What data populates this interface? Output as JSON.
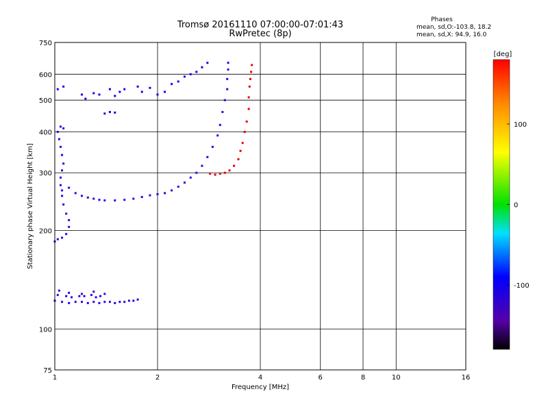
{
  "chart_data": {
    "type": "scatter",
    "title": "Tromsø 20161110 07:00:00-07:01:43",
    "subtitle": "RwPretec (8p)",
    "xlabel": "Frequency [MHz]",
    "ylabel": "Stationary phase Virtual Height [km]",
    "x_scale": "log",
    "y_scale": "log",
    "xlim": [
      1,
      16
    ],
    "ylim": [
      75,
      750
    ],
    "x_ticks": [
      1,
      2,
      4,
      6,
      8,
      10,
      16
    ],
    "y_ticks": [
      75,
      100,
      200,
      300,
      400,
      500,
      600,
      750
    ],
    "grid": true,
    "stats": {
      "title": "Phases",
      "line1": "mean, sd,O:-103.8, 18.2",
      "line2": "mean, sd,X:  94.9, 16.0"
    },
    "colorbar": {
      "label": "[deg]",
      "range": [
        -180,
        180
      ],
      "ticks": [
        100,
        0,
        -100
      ],
      "colormap": "rainbow"
    },
    "series": [
      {
        "name": "",
        "phase_deg": -110,
        "points": [
          [
            1.0,
            122
          ],
          [
            1.05,
            121
          ],
          [
            1.1,
            120
          ],
          [
            1.15,
            121
          ],
          [
            1.2,
            121
          ],
          [
            1.25,
            120
          ],
          [
            1.3,
            121
          ],
          [
            1.35,
            120
          ],
          [
            1.4,
            121
          ],
          [
            1.45,
            121
          ],
          [
            1.5,
            120
          ],
          [
            1.55,
            121
          ],
          [
            1.6,
            121
          ],
          [
            1.65,
            122
          ],
          [
            1.7,
            122
          ],
          [
            1.75,
            123
          ],
          [
            1.02,
            127
          ],
          [
            1.08,
            126
          ],
          [
            1.12,
            125
          ],
          [
            1.18,
            126
          ],
          [
            1.22,
            126
          ],
          [
            1.28,
            127
          ],
          [
            1.32,
            125
          ],
          [
            1.36,
            126
          ],
          [
            1.4,
            128
          ],
          [
            1.03,
            131
          ],
          [
            1.1,
            129
          ],
          [
            1.2,
            128
          ],
          [
            1.3,
            130
          ]
        ]
      },
      {
        "name": "",
        "phase_deg": -110,
        "points": [
          [
            1.0,
            185
          ],
          [
            1.02,
            188
          ],
          [
            1.05,
            190
          ],
          [
            1.08,
            195
          ],
          [
            1.1,
            205
          ],
          [
            1.1,
            215
          ],
          [
            1.08,
            225
          ],
          [
            1.06,
            240
          ],
          [
            1.05,
            255
          ],
          [
            1.05,
            265
          ],
          [
            1.04,
            275
          ],
          [
            1.04,
            290
          ],
          [
            1.05,
            305
          ],
          [
            1.06,
            320
          ],
          [
            1.05,
            340
          ],
          [
            1.04,
            360
          ],
          [
            1.03,
            380
          ],
          [
            1.02,
            400
          ],
          [
            1.04,
            415
          ],
          [
            1.06,
            410
          ],
          [
            1.1,
            270
          ],
          [
            1.15,
            260
          ],
          [
            1.2,
            255
          ],
          [
            1.25,
            252
          ],
          [
            1.3,
            250
          ],
          [
            1.35,
            248
          ],
          [
            1.4,
            247
          ],
          [
            1.5,
            247
          ],
          [
            1.6,
            248
          ],
          [
            1.7,
            250
          ],
          [
            1.8,
            253
          ],
          [
            1.9,
            256
          ],
          [
            2.0,
            258
          ],
          [
            2.1,
            260
          ],
          [
            2.2,
            265
          ],
          [
            2.3,
            272
          ],
          [
            2.4,
            280
          ],
          [
            2.5,
            290
          ],
          [
            2.6,
            300
          ],
          [
            2.7,
            315
          ],
          [
            2.8,
            335
          ],
          [
            2.9,
            360
          ],
          [
            3.0,
            390
          ],
          [
            3.05,
            420
          ],
          [
            3.1,
            460
          ],
          [
            3.15,
            500
          ],
          [
            3.2,
            540
          ],
          [
            3.2,
            580
          ],
          [
            3.22,
            620
          ],
          [
            3.22,
            650
          ]
        ]
      },
      {
        "name": "",
        "phase_deg": -105,
        "points": [
          [
            1.02,
            540
          ],
          [
            1.06,
            550
          ],
          [
            1.2,
            520
          ],
          [
            1.23,
            505
          ],
          [
            1.3,
            525
          ],
          [
            1.35,
            520
          ],
          [
            1.45,
            540
          ],
          [
            1.5,
            515
          ],
          [
            1.55,
            530
          ],
          [
            1.6,
            540
          ],
          [
            1.4,
            455
          ],
          [
            1.45,
            460
          ],
          [
            1.5,
            458
          ],
          [
            1.75,
            550
          ],
          [
            1.8,
            530
          ],
          [
            1.9,
            545
          ],
          [
            2.0,
            520
          ],
          [
            2.1,
            530
          ],
          [
            2.2,
            560
          ],
          [
            2.3,
            570
          ],
          [
            2.4,
            590
          ],
          [
            2.5,
            600
          ],
          [
            2.6,
            610
          ],
          [
            2.7,
            630
          ],
          [
            2.8,
            650
          ]
        ]
      },
      {
        "name": "",
        "phase_deg": 110,
        "points": [
          [
            2.85,
            298
          ],
          [
            2.95,
            296
          ],
          [
            3.05,
            298
          ],
          [
            3.15,
            300
          ],
          [
            3.25,
            305
          ],
          [
            3.35,
            315
          ],
          [
            3.45,
            330
          ],
          [
            3.5,
            350
          ],
          [
            3.55,
            370
          ],
          [
            3.6,
            400
          ],
          [
            3.65,
            430
          ],
          [
            3.7,
            470
          ],
          [
            3.7,
            510
          ],
          [
            3.72,
            550
          ],
          [
            3.74,
            580
          ],
          [
            3.76,
            610
          ],
          [
            3.78,
            640
          ]
        ]
      }
    ]
  }
}
